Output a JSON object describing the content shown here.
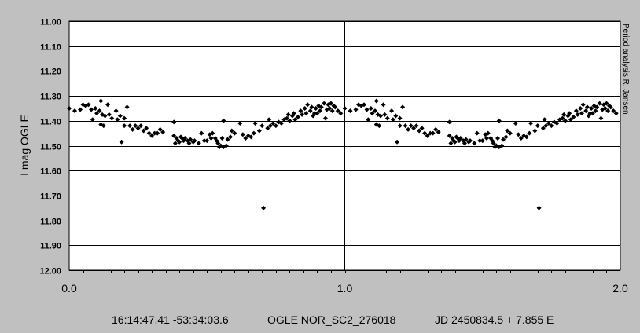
{
  "chart_data": {
    "type": "scatter",
    "ylabel": "I mag OGLE",
    "y_ticks": [
      "11.00",
      "11.10",
      "11.20",
      "11.30",
      "11.40",
      "11.50",
      "11.60",
      "11.70",
      "11.80",
      "11.90",
      "12.00"
    ],
    "x_ticks": [
      "0.0",
      "1.0",
      "2.0"
    ],
    "ylim": [
      11.0,
      12.0
    ],
    "y_inverted": true,
    "xlim": [
      0,
      2
    ],
    "grid": true,
    "marker": "diamond",
    "marker_color": "#000000",
    "background": "#ffffff",
    "side_note": "Period analysis R. Jansen",
    "footer": {
      "coords": "16:14:47.41 -53:34:03.6",
      "star": "OGLE NOR_SC2_276018",
      "ephemeris": "JD 2450834.5 + 7.855 E"
    },
    "points": [
      {
        "x": 0.0,
        "y": 11.35
      },
      {
        "x": 0.02,
        "y": 11.36
      },
      {
        "x": 0.04,
        "y": 11.355
      },
      {
        "x": 0.05,
        "y": 11.335
      },
      {
        "x": 0.06,
        "y": 11.34
      },
      {
        "x": 0.07,
        "y": 11.335
      },
      {
        "x": 0.08,
        "y": 11.355
      },
      {
        "x": 0.085,
        "y": 11.395
      },
      {
        "x": 0.095,
        "y": 11.35
      },
      {
        "x": 0.1,
        "y": 11.37
      },
      {
        "x": 0.11,
        "y": 11.36
      },
      {
        "x": 0.115,
        "y": 11.415
      },
      {
        "x": 0.115,
        "y": 11.32
      },
      {
        "x": 0.12,
        "y": 11.375
      },
      {
        "x": 0.125,
        "y": 11.42
      },
      {
        "x": 0.13,
        "y": 11.38
      },
      {
        "x": 0.14,
        "y": 11.335
      },
      {
        "x": 0.145,
        "y": 11.375
      },
      {
        "x": 0.155,
        "y": 11.39
      },
      {
        "x": 0.17,
        "y": 11.36
      },
      {
        "x": 0.175,
        "y": 11.395
      },
      {
        "x": 0.185,
        "y": 11.38
      },
      {
        "x": 0.19,
        "y": 11.485
      },
      {
        "x": 0.2,
        "y": 11.39
      },
      {
        "x": 0.2,
        "y": 11.42
      },
      {
        "x": 0.21,
        "y": 11.345
      },
      {
        "x": 0.22,
        "y": 11.42
      },
      {
        "x": 0.23,
        "y": 11.435
      },
      {
        "x": 0.24,
        "y": 11.42
      },
      {
        "x": 0.25,
        "y": 11.43
      },
      {
        "x": 0.26,
        "y": 11.42
      },
      {
        "x": 0.27,
        "y": 11.44
      },
      {
        "x": 0.28,
        "y": 11.43
      },
      {
        "x": 0.29,
        "y": 11.45
      },
      {
        "x": 0.3,
        "y": 11.46
      },
      {
        "x": 0.31,
        "y": 11.45
      },
      {
        "x": 0.32,
        "y": 11.45
      },
      {
        "x": 0.33,
        "y": 11.435
      },
      {
        "x": 0.34,
        "y": 11.445
      },
      {
        "x": 0.38,
        "y": 11.405
      },
      {
        "x": 0.38,
        "y": 11.46
      },
      {
        "x": 0.385,
        "y": 11.49
      },
      {
        "x": 0.39,
        "y": 11.47
      },
      {
        "x": 0.395,
        "y": 11.48
      },
      {
        "x": 0.4,
        "y": 11.485
      },
      {
        "x": 0.405,
        "y": 11.465
      },
      {
        "x": 0.41,
        "y": 11.47
      },
      {
        "x": 0.415,
        "y": 11.48
      },
      {
        "x": 0.42,
        "y": 11.47
      },
      {
        "x": 0.43,
        "y": 11.48
      },
      {
        "x": 0.435,
        "y": 11.49
      },
      {
        "x": 0.44,
        "y": 11.475
      },
      {
        "x": 0.45,
        "y": 11.485
      },
      {
        "x": 0.455,
        "y": 11.48
      },
      {
        "x": 0.47,
        "y": 11.49
      },
      {
        "x": 0.48,
        "y": 11.45
      },
      {
        "x": 0.49,
        "y": 11.48
      },
      {
        "x": 0.5,
        "y": 11.48
      },
      {
        "x": 0.51,
        "y": 11.455
      },
      {
        "x": 0.515,
        "y": 11.47
      },
      {
        "x": 0.52,
        "y": 11.45
      },
      {
        "x": 0.53,
        "y": 11.47
      },
      {
        "x": 0.535,
        "y": 11.48
      },
      {
        "x": 0.54,
        "y": 11.49
      },
      {
        "x": 0.545,
        "y": 11.505
      },
      {
        "x": 0.55,
        "y": 11.5
      },
      {
        "x": 0.555,
        "y": 11.47
      },
      {
        "x": 0.56,
        "y": 11.4
      },
      {
        "x": 0.56,
        "y": 11.505
      },
      {
        "x": 0.57,
        "y": 11.5
      },
      {
        "x": 0.575,
        "y": 11.475
      },
      {
        "x": 0.585,
        "y": 11.465
      },
      {
        "x": 0.59,
        "y": 11.44
      },
      {
        "x": 0.6,
        "y": 11.45
      },
      {
        "x": 0.62,
        "y": 11.41
      },
      {
        "x": 0.63,
        "y": 11.455
      },
      {
        "x": 0.64,
        "y": 11.47
      },
      {
        "x": 0.65,
        "y": 11.46
      },
      {
        "x": 0.66,
        "y": 11.465
      },
      {
        "x": 0.67,
        "y": 11.45
      },
      {
        "x": 0.675,
        "y": 11.41
      },
      {
        "x": 0.69,
        "y": 11.44
      },
      {
        "x": 0.7,
        "y": 11.42
      },
      {
        "x": 0.705,
        "y": 11.75
      },
      {
        "x": 0.72,
        "y": 11.43
      },
      {
        "x": 0.725,
        "y": 11.395
      },
      {
        "x": 0.73,
        "y": 11.42
      },
      {
        "x": 0.74,
        "y": 11.41
      },
      {
        "x": 0.75,
        "y": 11.42
      },
      {
        "x": 0.76,
        "y": 11.405
      },
      {
        "x": 0.77,
        "y": 11.41
      },
      {
        "x": 0.78,
        "y": 11.395
      },
      {
        "x": 0.79,
        "y": 11.39
      },
      {
        "x": 0.795,
        "y": 11.375
      },
      {
        "x": 0.8,
        "y": 11.4
      },
      {
        "x": 0.81,
        "y": 11.38
      },
      {
        "x": 0.815,
        "y": 11.37
      },
      {
        "x": 0.82,
        "y": 11.395
      },
      {
        "x": 0.83,
        "y": 11.385
      },
      {
        "x": 0.84,
        "y": 11.36
      },
      {
        "x": 0.845,
        "y": 11.375
      },
      {
        "x": 0.855,
        "y": 11.35
      },
      {
        "x": 0.86,
        "y": 11.37
      },
      {
        "x": 0.865,
        "y": 11.335
      },
      {
        "x": 0.875,
        "y": 11.36
      },
      {
        "x": 0.88,
        "y": 11.345
      },
      {
        "x": 0.885,
        "y": 11.38
      },
      {
        "x": 0.89,
        "y": 11.37
      },
      {
        "x": 0.895,
        "y": 11.35
      },
      {
        "x": 0.9,
        "y": 11.37
      },
      {
        "x": 0.905,
        "y": 11.34
      },
      {
        "x": 0.91,
        "y": 11.36
      },
      {
        "x": 0.915,
        "y": 11.345
      },
      {
        "x": 0.925,
        "y": 11.33
      },
      {
        "x": 0.93,
        "y": 11.39
      },
      {
        "x": 0.935,
        "y": 11.355
      },
      {
        "x": 0.94,
        "y": 11.335
      },
      {
        "x": 0.945,
        "y": 11.35
      },
      {
        "x": 0.95,
        "y": 11.33
      },
      {
        "x": 0.955,
        "y": 11.36
      },
      {
        "x": 0.96,
        "y": 11.34
      },
      {
        "x": 0.965,
        "y": 11.345
      },
      {
        "x": 0.975,
        "y": 11.36
      },
      {
        "x": 0.985,
        "y": 11.37
      }
    ]
  }
}
